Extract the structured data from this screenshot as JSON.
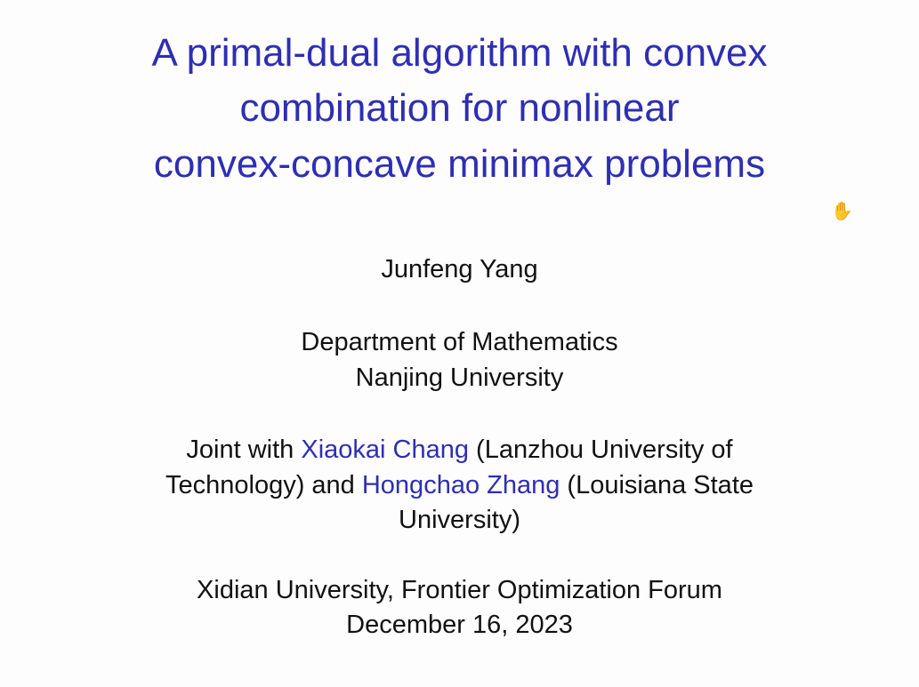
{
  "title_lines": [
    "A primal-dual algorithm with convex",
    "combination for nonlinear",
    "convex-concave minimax problems"
  ],
  "author": "Junfeng Yang",
  "affiliation": [
    "Department of Mathematics",
    "Nanjing University"
  ],
  "joint": {
    "prefix": "Joint with ",
    "coauthor1": "Xiaokai Chang",
    "coauthor1_aff_a": " (Lanzhou University of",
    "coauthor1_aff_b": "Technology) and ",
    "coauthor2": "Hongchao Zhang",
    "coauthor2_aff_a": " (Louisiana State",
    "coauthor2_aff_b": "University)"
  },
  "venue": "Xidian University, Frontier Optimization Forum",
  "date": "December 16, 2023",
  "colors": {
    "title": "#2e2eb4",
    "text": "#111111"
  },
  "cursor_icon": "hand-grab-cursor-icon"
}
